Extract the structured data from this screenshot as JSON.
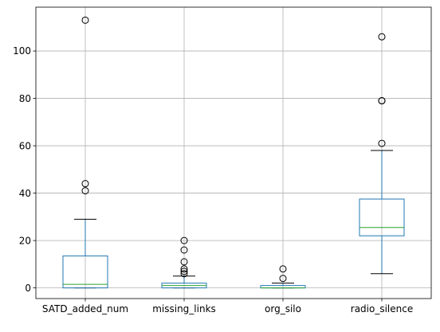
{
  "chart_data": {
    "type": "boxplot",
    "title": "",
    "xlabel": "",
    "ylabel": "",
    "ylim": [
      -4.5,
      118.5
    ],
    "grid": true,
    "y_ticks": [
      0,
      20,
      40,
      60,
      80,
      100
    ],
    "categories": [
      "SATD_added_num",
      "missing_links",
      "org_silo",
      "radio_silence"
    ],
    "boxes": [
      {
        "name": "SATD_added_num",
        "whisker_low": 0,
        "q1": 0,
        "median": 1.5,
        "q3": 13.5,
        "whisker_high": 29,
        "outliers": [
          41,
          44,
          113
        ]
      },
      {
        "name": "missing_links",
        "whisker_low": 0,
        "q1": 0,
        "median": 1,
        "q3": 2,
        "whisker_high": 5,
        "outliers": [
          6,
          7,
          8,
          11,
          16,
          20
        ]
      },
      {
        "name": "org_silo",
        "whisker_low": 0,
        "q1": 0,
        "median": 0,
        "q3": 1,
        "whisker_high": 2,
        "outliers": [
          4,
          8
        ]
      },
      {
        "name": "radio_silence",
        "whisker_low": 6,
        "q1": 22,
        "median": 25.5,
        "q3": 37.5,
        "whisker_high": 58,
        "outliers": [
          61,
          79,
          79,
          106
        ]
      }
    ]
  },
  "colors": {
    "box": "#1f77b4",
    "median": "#2ca02c",
    "whisker": "#1f77b4",
    "cap": "#000000",
    "grid": "#b0b0b0",
    "axis": "#000000"
  }
}
